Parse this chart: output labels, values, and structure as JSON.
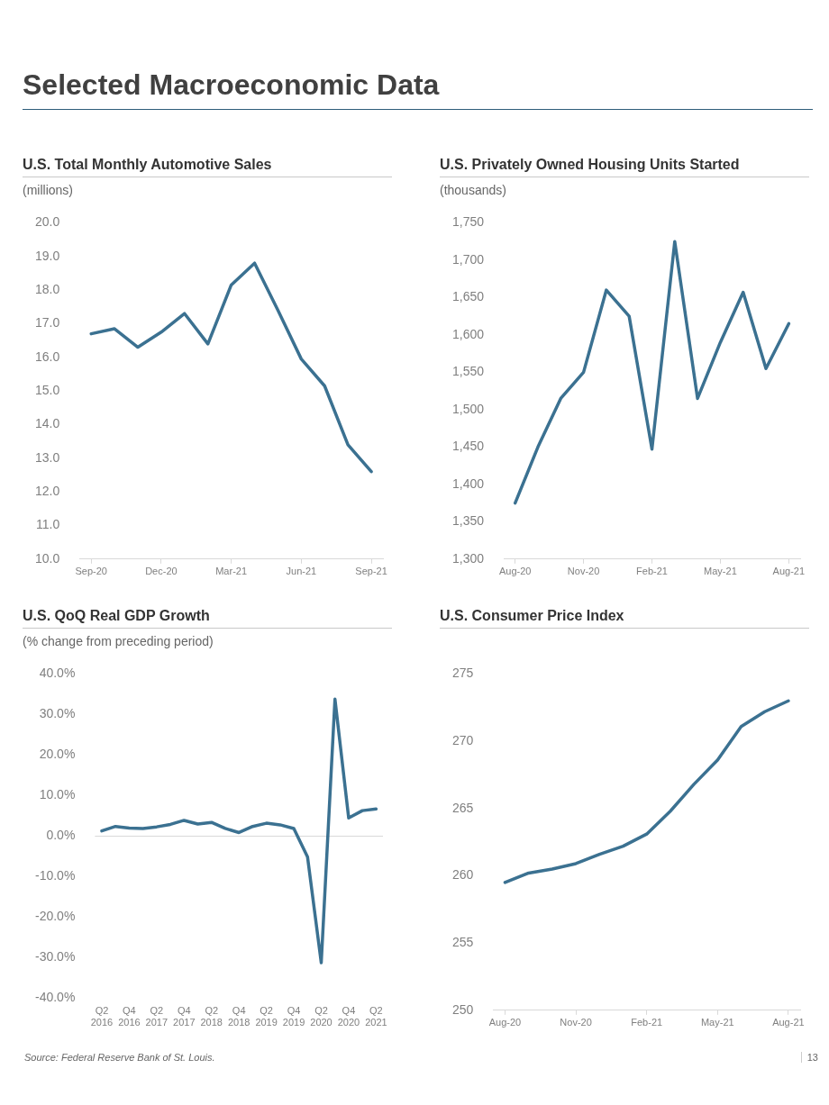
{
  "chart_data": [
    {
      "type": "line",
      "title": "U.S. Total Monthly Automotive Sales",
      "subtitle": "(millions)",
      "annotations": [
        "Selected Macroeconomic Data"
      ],
      "categories": [
        "Sep-20",
        null,
        null,
        "Dec-20",
        null,
        null,
        "Mar-21",
        null,
        null,
        "Jun-21",
        null,
        null,
        "Sep-21"
      ],
      "values": [
        16.7,
        16.85,
        16.3,
        16.75,
        17.3,
        16.4,
        18.15,
        18.8,
        17.4,
        15.95,
        15.15,
        13.4,
        12.6
      ],
      "color": "#3b7191",
      "marker": "none",
      "line_style": "solid",
      "legend": false,
      "grid": false,
      "ylim": [
        10,
        20
      ],
      "yticks": [
        {
          "value": 10,
          "label": "10.0"
        },
        {
          "value": 11,
          "label": "11.0"
        },
        {
          "value": 12,
          "label": "12.0"
        },
        {
          "value": 13,
          "label": "13.0"
        },
        {
          "value": 14,
          "label": "14.0"
        },
        {
          "value": 15,
          "label": "15.0"
        },
        {
          "value": 16,
          "label": "16.0"
        },
        {
          "value": 17,
          "label": "17.0"
        },
        {
          "value": 18,
          "label": "18.0"
        },
        {
          "value": 19,
          "label": "19.0"
        },
        {
          "value": 20,
          "label": "20.0"
        }
      ]
    },
    {
      "type": "line",
      "title": "U.S. Privately Owned Housing Units Started",
      "subtitle": "(thousands)",
      "categories": [
        "Aug-20",
        null,
        null,
        "Nov-20",
        null,
        null,
        "Feb-21",
        null,
        null,
        "May-21",
        null,
        null,
        "Aug-21"
      ],
      "values": [
        1375,
        1450,
        1515,
        1550,
        1660,
        1625,
        1447,
        1725,
        1515,
        1590,
        1657,
        1555,
        1615
      ],
      "color": "#3b7191",
      "marker": "none",
      "line_style": "solid",
      "legend": false,
      "grid": false,
      "ylim": [
        1300,
        1750
      ],
      "yticks": [
        {
          "value": 1300,
          "label": "1,300"
        },
        {
          "value": 1350,
          "label": "1,350"
        },
        {
          "value": 1400,
          "label": "1,400"
        },
        {
          "value": 1450,
          "label": "1,450"
        },
        {
          "value": 1500,
          "label": "1,500"
        },
        {
          "value": 1550,
          "label": "1,550"
        },
        {
          "value": 1600,
          "label": "1,600"
        },
        {
          "value": 1650,
          "label": "1,650"
        },
        {
          "value": 1700,
          "label": "1,700"
        },
        {
          "value": 1750,
          "label": "1,750"
        }
      ]
    },
    {
      "type": "line",
      "title": "U.S. QoQ Real GDP Growth",
      "subtitle": "(% change from preceding period)",
      "annotations": [
        "Source: Federal Reserve Bank of St. Louis."
      ],
      "categories": [
        "Q2 2016",
        null,
        "Q4 2016",
        null,
        "Q2 2017",
        null,
        "Q4 2017",
        null,
        "Q2 2018",
        null,
        "Q4 2018",
        null,
        "Q2 2019",
        null,
        "Q4 2019",
        null,
        "Q2 2020",
        null,
        "Q4 2020",
        null,
        "Q2 2021"
      ],
      "values": [
        1.3,
        2.4,
        2.0,
        1.9,
        2.3,
        2.9,
        3.9,
        3.0,
        3.4,
        1.9,
        0.9,
        2.4,
        3.2,
        2.8,
        1.9,
        -5.1,
        -31.2,
        33.8,
        4.5,
        6.3,
        6.7
      ],
      "color": "#3b7191",
      "marker": "none",
      "line_style": "solid",
      "legend": false,
      "grid": false,
      "ref_lines": [
        {
          "axis": "y",
          "value": 0,
          "color": "#d9d9d9"
        }
      ],
      "ylim": [
        -40,
        40
      ],
      "yticks": [
        {
          "value": -40,
          "label": "-40.0%"
        },
        {
          "value": -30,
          "label": "-30.0%"
        },
        {
          "value": -20,
          "label": "-20.0%"
        },
        {
          "value": -10,
          "label": "-10.0%"
        },
        {
          "value": 0,
          "label": "0.0%"
        },
        {
          "value": 10,
          "label": "10.0%"
        },
        {
          "value": 20,
          "label": "20.0%"
        },
        {
          "value": 30,
          "label": "30.0%"
        },
        {
          "value": 40,
          "label": "40.0%"
        }
      ]
    },
    {
      "type": "line",
      "title": "U.S. Consumer Price Index",
      "annotations": [
        "13"
      ],
      "categories": [
        "Aug-20",
        null,
        null,
        "Nov-20",
        null,
        null,
        "Feb-21",
        null,
        null,
        "May-21",
        null,
        null,
        "Aug-21"
      ],
      "values": [
        259.5,
        260.2,
        260.5,
        260.9,
        261.6,
        262.2,
        263.1,
        264.8,
        266.8,
        268.6,
        271.1,
        272.2,
        273.0
      ],
      "color": "#3b7191",
      "marker": "none",
      "line_style": "solid",
      "legend": false,
      "grid": false,
      "ylim": [
        250,
        275
      ],
      "yticks": [
        250,
        255,
        260,
        265,
        270,
        275
      ]
    }
  ]
}
